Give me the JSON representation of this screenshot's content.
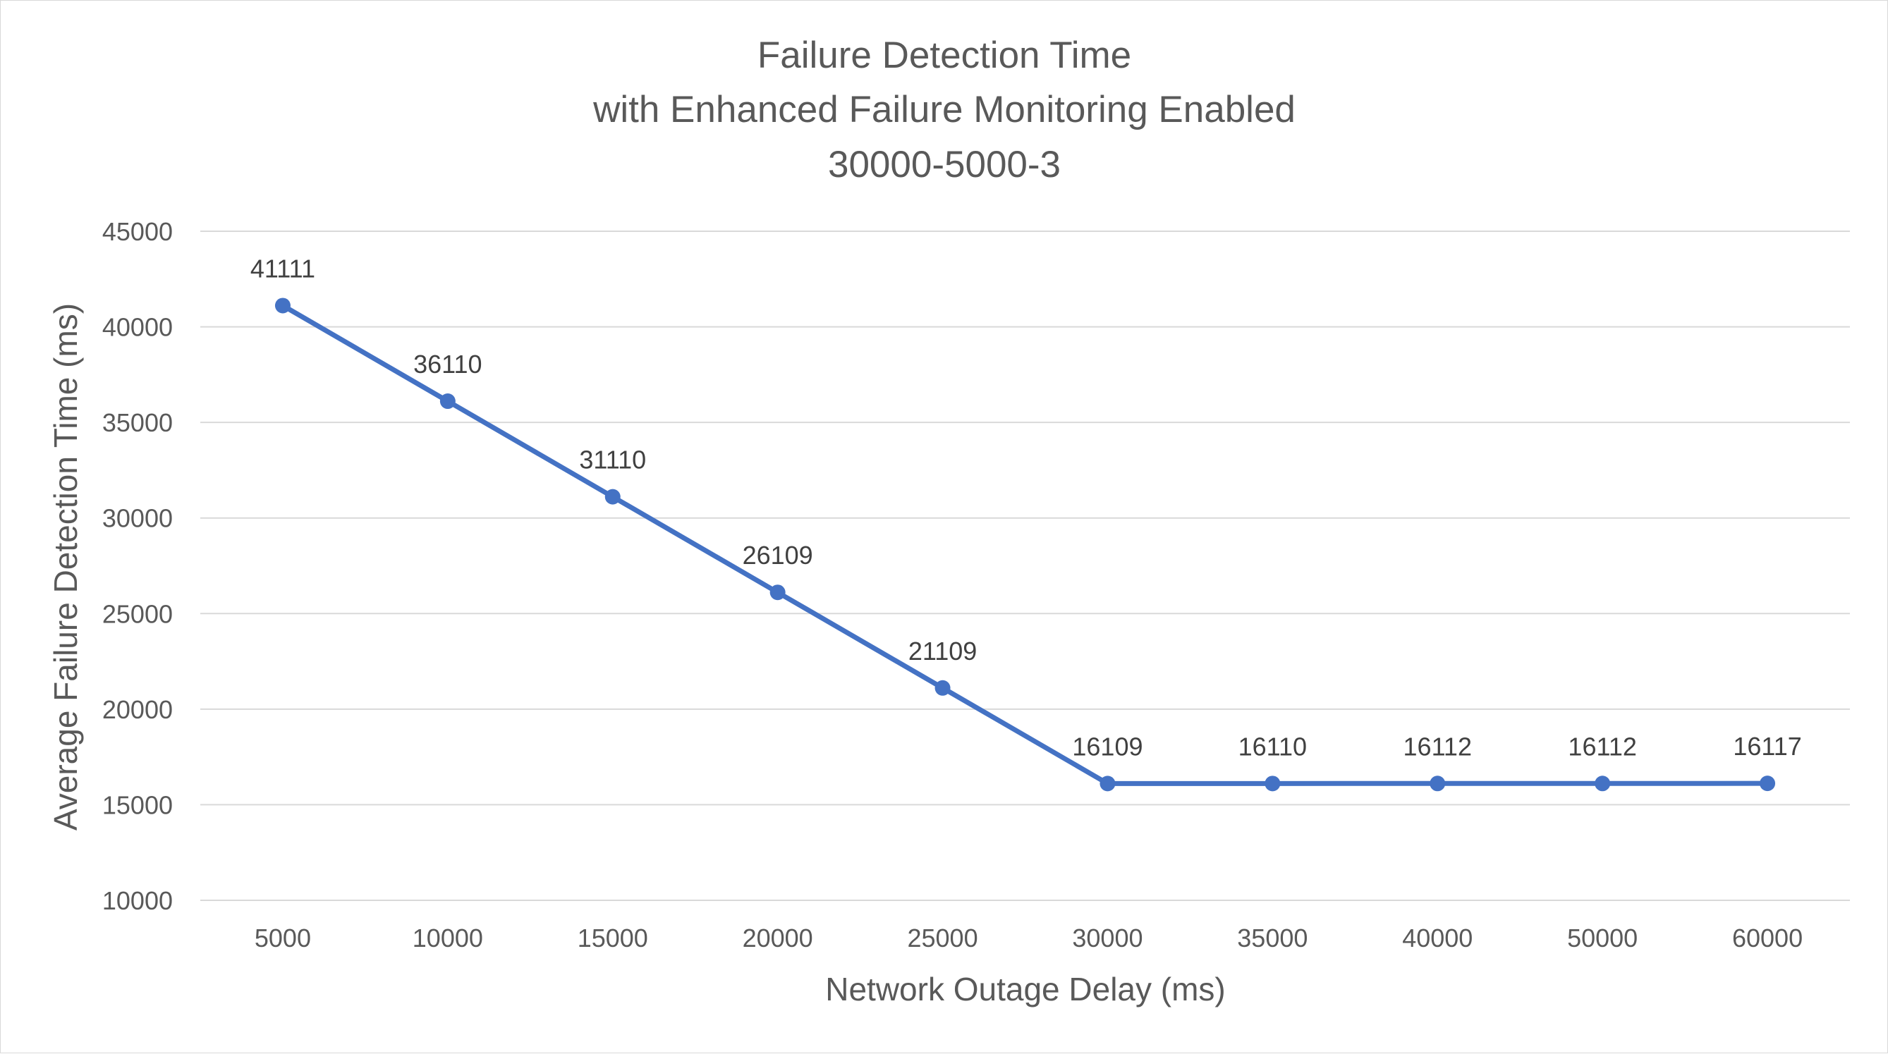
{
  "chart_data": {
    "type": "line",
    "title": [
      "Failure Detection Time",
      "with Enhanced Failure Monitoring Enabled",
      "30000-5000-3"
    ],
    "xlabel": "Network Outage Delay (ms)",
    "ylabel": "Average Failure Detection Time (ms)",
    "categories": [
      "5000",
      "10000",
      "15000",
      "20000",
      "25000",
      "30000",
      "35000",
      "40000",
      "50000",
      "60000"
    ],
    "series": [
      {
        "values": [
          41111,
          36110,
          31110,
          26109,
          21109,
          16109,
          16110,
          16112,
          16112,
          16117
        ],
        "data_labels": [
          "41111",
          "36110",
          "31110",
          "26109",
          "21109",
          "16109",
          "16110",
          "16112",
          "16112",
          "16117"
        ],
        "color": "#4472c4"
      }
    ],
    "ylim": [
      10000,
      45000
    ],
    "yticks": [
      "10000",
      "15000",
      "20000",
      "25000",
      "30000",
      "35000",
      "40000",
      "45000"
    ],
    "ystep": 5000,
    "grid": true,
    "legend": "none",
    "colors": {
      "gridline": "#d9d9d9",
      "text": "#595959",
      "data_label": "#404040",
      "border": "#d9d9d9"
    }
  }
}
